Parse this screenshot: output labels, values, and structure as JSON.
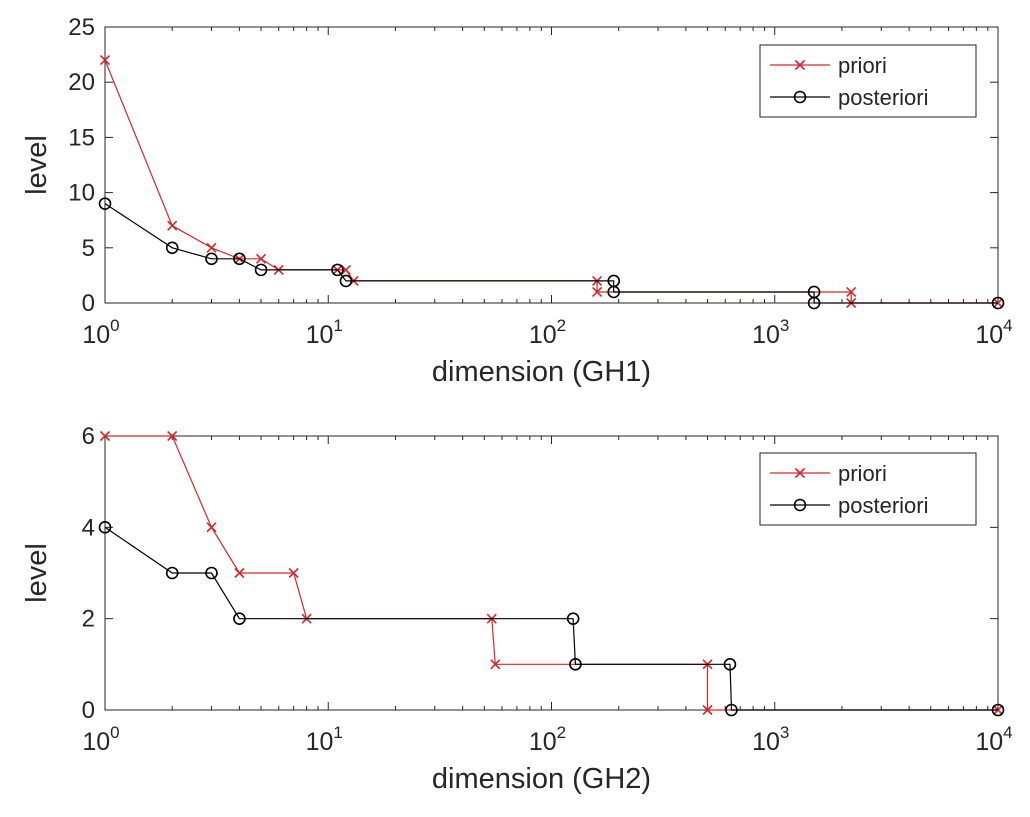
{
  "chart_data": [
    {
      "type": "line",
      "xlabel": "dimension (GH1)",
      "ylabel": "level",
      "xscale": "log",
      "xlim": [
        1,
        10000
      ],
      "ylim": [
        0,
        25
      ],
      "xticks": [
        1,
        10,
        100,
        1000,
        10000
      ],
      "xtick_labels": [
        {
          "base": "10",
          "exp": "0"
        },
        {
          "base": "10",
          "exp": "1"
        },
        {
          "base": "10",
          "exp": "2"
        },
        {
          "base": "10",
          "exp": "3"
        },
        {
          "base": "10",
          "exp": "4"
        }
      ],
      "yticks": [
        0,
        5,
        10,
        15,
        20,
        25
      ],
      "ytick_labels": [
        "0",
        "5",
        "10",
        "15",
        "20",
        "25"
      ],
      "grid": false,
      "legend_position": "top-right",
      "series": [
        {
          "name": "priori",
          "color": "#d62728",
          "marker": "x",
          "x": [
            1,
            2,
            3,
            4,
            5,
            6,
            11,
            12,
            13,
            160,
            160,
            2200,
            2200,
            10000
          ],
          "y": [
            22,
            7,
            5,
            4,
            4,
            3,
            3,
            3,
            2,
            2,
            1,
            1,
            0,
            0
          ]
        },
        {
          "name": "posteriori",
          "color": "#000000",
          "marker": "o",
          "x": [
            1,
            2,
            3,
            4,
            5,
            11,
            12,
            190,
            190,
            1500,
            1500,
            10000
          ],
          "y": [
            9,
            5,
            4,
            4,
            3,
            3,
            2,
            2,
            1,
            1,
            0,
            0
          ]
        }
      ]
    },
    {
      "type": "line",
      "xlabel": "dimension (GH2)",
      "ylabel": "level",
      "xscale": "log",
      "xlim": [
        1,
        10000
      ],
      "ylim": [
        0,
        6
      ],
      "xticks": [
        1,
        10,
        100,
        1000,
        10000
      ],
      "xtick_labels": [
        {
          "base": "10",
          "exp": "0"
        },
        {
          "base": "10",
          "exp": "1"
        },
        {
          "base": "10",
          "exp": "2"
        },
        {
          "base": "10",
          "exp": "3"
        },
        {
          "base": "10",
          "exp": "4"
        }
      ],
      "yticks": [
        0,
        2,
        4,
        6
      ],
      "ytick_labels": [
        "0",
        "2",
        "4",
        "6"
      ],
      "grid": false,
      "legend_position": "top-right",
      "series": [
        {
          "name": "priori",
          "color": "#d62728",
          "marker": "x",
          "x": [
            1,
            2,
            3,
            4,
            7,
            8,
            54,
            56,
            500,
            500,
            10000
          ],
          "y": [
            6,
            6,
            4,
            3,
            3,
            2,
            2,
            1,
            1,
            0,
            0
          ]
        },
        {
          "name": "posteriori",
          "color": "#000000",
          "marker": "o",
          "x": [
            1,
            2,
            3,
            4,
            125,
            128,
            630,
            640,
            10000
          ],
          "y": [
            4,
            3,
            3,
            2,
            2,
            1,
            1,
            0,
            0
          ]
        }
      ]
    }
  ]
}
